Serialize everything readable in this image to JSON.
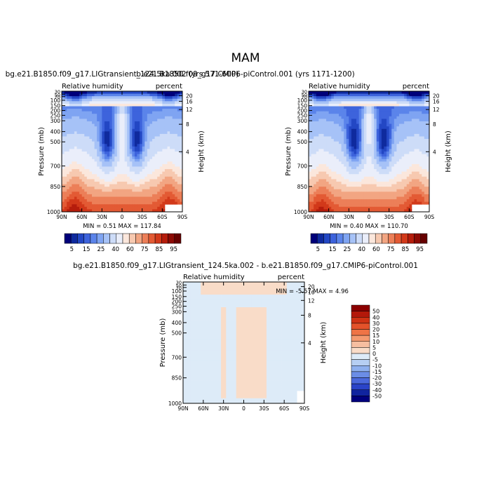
{
  "figure": {
    "season": "MAM"
  },
  "chart_data": [
    {
      "type": "heatmap",
      "title": "bg.e21.B1850.f09_g17.LIGtransient_124.5ka.002 (yrs 571-600)",
      "left_label": "Relative humidity",
      "right_label": "percent",
      "ylabel": "Pressure (mb)",
      "y2label": "Height (km)",
      "x_ticks": [
        "90N",
        "60N",
        "30N",
        "0",
        "30S",
        "60S",
        "90S"
      ],
      "y_ticks": [
        "30",
        "50",
        "70",
        "100",
        "150",
        "200",
        "250",
        "300",
        "400",
        "500",
        "700",
        "850",
        "1000"
      ],
      "y2_ticks": [
        "20",
        "16",
        "12",
        "8",
        "4"
      ],
      "stats_text": "MIN =    0.51   MAX = 117.84",
      "min": 0.51,
      "max": 117.84,
      "colorbar": {
        "labels": [
          "5",
          "15",
          "25",
          "40",
          "60",
          "75",
          "85",
          "95"
        ],
        "colors": [
          "#00007a",
          "#0f2a9e",
          "#2347c4",
          "#3d63dc",
          "#5b84ea",
          "#7fa4f2",
          "#a6c2f7",
          "#cddcf8",
          "#eaeefa",
          "#fbe7dc",
          "#f7c9b0",
          "#f2a582",
          "#ec7f58",
          "#e35a34",
          "#d2391a",
          "#b51d0c",
          "#8c0a04",
          "#660000"
        ]
      }
    },
    {
      "type": "heatmap",
      "title": "b.e21.B1850.f09_g17.CMIP6-piControl.001 (yrs 1171-1200)",
      "left_label": "Relative humidity",
      "right_label": "percent",
      "ylabel": "Pressure (mb)",
      "y2label": "Height (km)",
      "x_ticks": [
        "90N",
        "60N",
        "30N",
        "0",
        "30S",
        "60S",
        "90S"
      ],
      "y_ticks": [
        "30",
        "50",
        "70",
        "100",
        "150",
        "200",
        "250",
        "300",
        "400",
        "500",
        "700",
        "850",
        "1000"
      ],
      "y2_ticks": [
        "20",
        "16",
        "12",
        "8",
        "4"
      ],
      "stats_text": "MIN =    0.40   MAX = 110.70",
      "min": 0.4,
      "max": 110.7,
      "colorbar": {
        "labels": [
          "5",
          "15",
          "25",
          "40",
          "60",
          "75",
          "85",
          "95"
        ],
        "colors": [
          "#00007a",
          "#0f2a9e",
          "#2347c4",
          "#3d63dc",
          "#5b84ea",
          "#7fa4f2",
          "#a6c2f7",
          "#cddcf8",
          "#eaeefa",
          "#fbe7dc",
          "#f7c9b0",
          "#f2a582",
          "#ec7f58",
          "#e35a34",
          "#d2391a",
          "#b51d0c",
          "#8c0a04",
          "#660000"
        ]
      }
    },
    {
      "type": "heatmap",
      "title": "bg.e21.B1850.f09_g17.LIGtransient_124.5ka.002 - b.e21.B1850.f09_g17.CMIP6-piControl.001",
      "left_label": "Relative humidity",
      "right_label": "percent",
      "ylabel": "Pressure (mb)",
      "y2label": "Height (km)",
      "x_ticks": [
        "90N",
        "60N",
        "30N",
        "0",
        "30S",
        "60S",
        "90S"
      ],
      "y_ticks": [
        "30",
        "50",
        "70",
        "100",
        "150",
        "200",
        "250",
        "300",
        "400",
        "500",
        "700",
        "850",
        "1000"
      ],
      "y2_ticks": [
        "20",
        "16",
        "12",
        "8",
        "4"
      ],
      "stats_text": "MIN =   -5.57   MAX =    4.96",
      "min": -5.57,
      "max": 4.96,
      "colorbar": {
        "labels": [
          "50",
          "40",
          "30",
          "20",
          "15",
          "10",
          "5",
          "0",
          "-5",
          "-10",
          "-15",
          "-20",
          "-30",
          "-40",
          "-50"
        ],
        "colors": [
          "#8b0000",
          "#b3180a",
          "#cf3214",
          "#e4522a",
          "#ef7446",
          "#f49a70",
          "#f6bea0",
          "#f9dcc8",
          "#ddebf8",
          "#b6cff3",
          "#8eb0ee",
          "#6b8de6",
          "#4b69dc",
          "#2a44c8",
          "#10249f",
          "#00007d"
        ]
      }
    }
  ]
}
